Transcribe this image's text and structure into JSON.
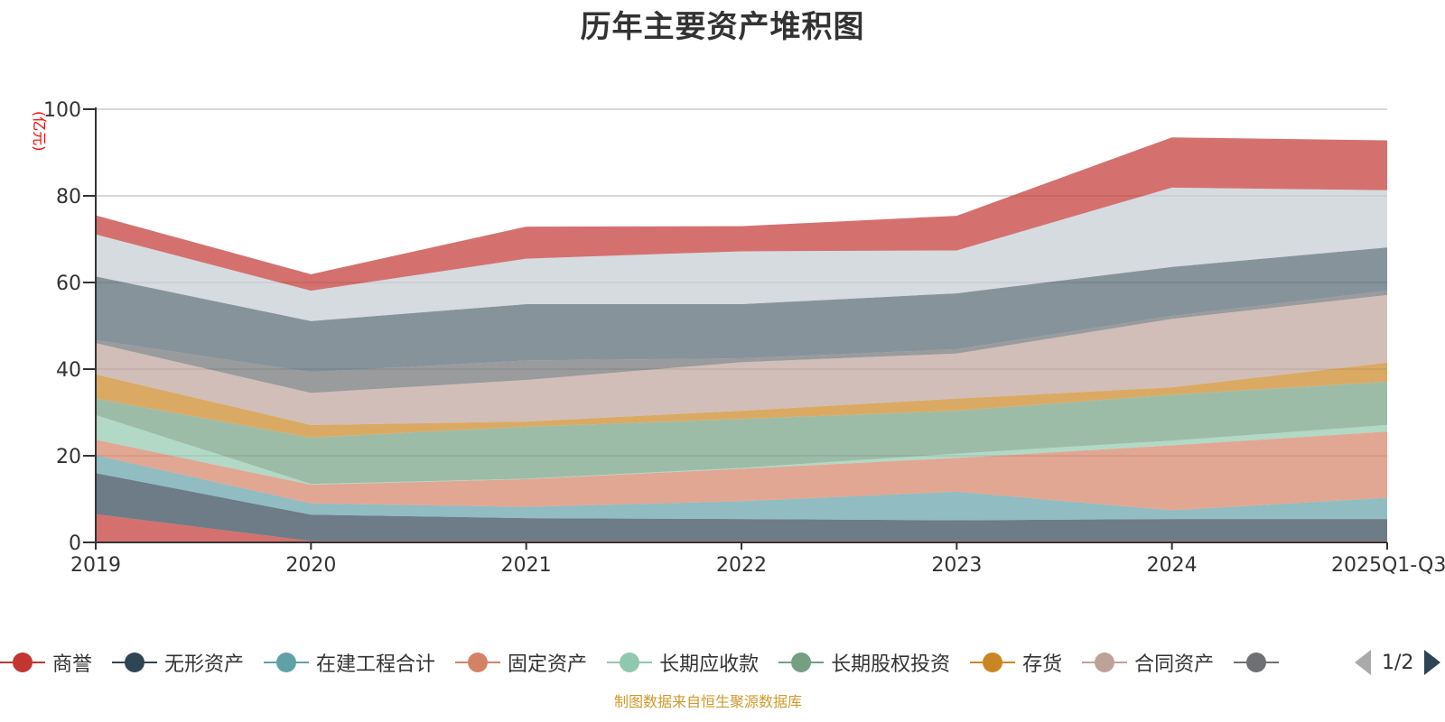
{
  "chart_data": {
    "type": "area",
    "stacked": true,
    "title": "历年主要资产堆积图",
    "ylabel": "(亿元)",
    "xlabel": "",
    "ylim": [
      0,
      100
    ],
    "yticks": [
      0,
      20,
      40,
      60,
      80,
      100
    ],
    "grid": true,
    "categories": [
      "2019",
      "2020",
      "2021",
      "2022",
      "2023",
      "2024",
      "2025Q1-Q3"
    ],
    "series": [
      {
        "name": "商誉",
        "color": "#c23531",
        "values": [
          6.5,
          0.3,
          0.3,
          0.3,
          0.3,
          0.3,
          0.3
        ]
      },
      {
        "name": "无形资产",
        "color": "#2f4554",
        "values": [
          9.5,
          6.1,
          5.3,
          5.1,
          4.8,
          5.1,
          5.1
        ]
      },
      {
        "name": "在建工程合计",
        "color": "#61a0a8",
        "values": [
          4.1,
          2.6,
          2.6,
          4.1,
          6.6,
          2.0,
          4.9
        ]
      },
      {
        "name": "固定资产",
        "color": "#d48265",
        "values": [
          3.6,
          4.3,
          6.4,
          7.5,
          7.8,
          15.0,
          15.3
        ]
      },
      {
        "name": "长期应收款",
        "color": "#91c7ae",
        "values": [
          5.7,
          0.2,
          0.1,
          0.2,
          1.0,
          1.1,
          1.5
        ]
      },
      {
        "name": "长期股权投资",
        "color": "#749f83",
        "values": [
          3.8,
          10.7,
          12.0,
          11.3,
          9.9,
          10.6,
          10.0
        ]
      },
      {
        "name": "存货",
        "color": "#ca8622",
        "values": [
          5.6,
          2.9,
          1.2,
          1.9,
          2.8,
          1.7,
          4.4
        ]
      },
      {
        "name": "合同资产",
        "color": "#bda29a",
        "values": [
          7.2,
          7.4,
          9.6,
          11.2,
          10.4,
          15.8,
          15.6
        ]
      },
      {
        "name": "",
        "color": "#6e7074",
        "values": [
          0.7,
          4.8,
          4.5,
          0.9,
          1.0,
          0.7,
          1.0
        ]
      },
      {
        "name": "",
        "color": "#546570",
        "values": [
          14.7,
          11.8,
          13.0,
          12.5,
          12.9,
          11.3,
          10.0
        ]
      },
      {
        "name": "",
        "color": "#c4ccd3",
        "values": [
          9.7,
          7.0,
          10.5,
          12.2,
          9.9,
          18.3,
          13.2
        ]
      },
      {
        "name": "",
        "color": "#c23531",
        "values": [
          4.4,
          3.8,
          7.4,
          5.8,
          8.0,
          11.6,
          11.5
        ]
      }
    ],
    "legend_position": "bottom",
    "legend_visible": [
      "商誉",
      "无形资产",
      "在建工程合计",
      "固定资产",
      "长期应收款",
      "长期股权投资",
      "存货",
      "合同资产",
      ""
    ]
  },
  "legend": {
    "page": "1/2",
    "items": [
      {
        "name": "商誉",
        "color": "#c23531"
      },
      {
        "name": "无形资产",
        "color": "#2f4554"
      },
      {
        "name": "在建工程合计",
        "color": "#61a0a8"
      },
      {
        "name": "固定资产",
        "color": "#d48265"
      },
      {
        "name": "长期应收款",
        "color": "#91c7ae"
      },
      {
        "name": "长期股权投资",
        "color": "#749f83"
      },
      {
        "name": "存货",
        "color": "#ca8622"
      },
      {
        "name": "合同资产",
        "color": "#bda29a"
      },
      {
        "name": "",
        "color": "#6e7074"
      }
    ]
  },
  "footer": "制图数据来自恒生聚源数据库"
}
